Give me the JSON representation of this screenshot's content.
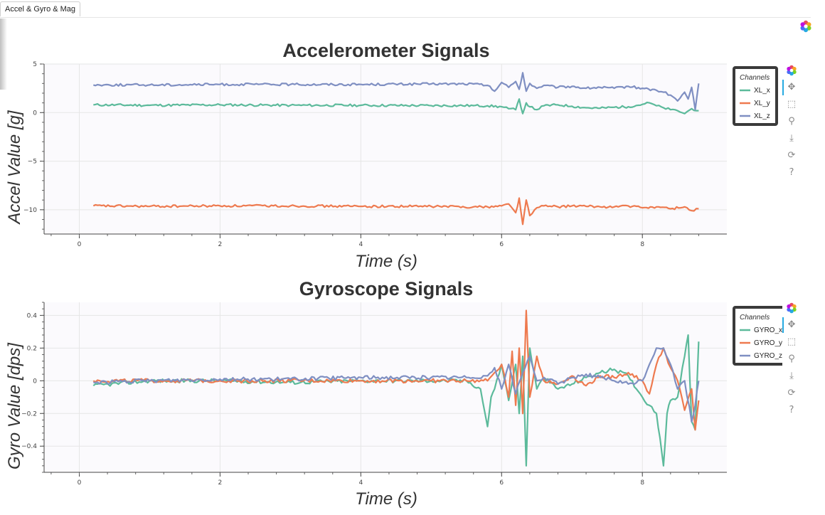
{
  "tab": {
    "label": "Accel & Gyro & Mag"
  },
  "colors": {
    "x": "#5cba9b",
    "y": "#ee7a4f",
    "z": "#7f8fc2",
    "grid": "#e6e6e6",
    "bg": "#fbfafd"
  },
  "toolbar_icons": [
    "bokeh-logo-icon",
    "pan-icon",
    "box-zoom-icon",
    "wheel-zoom-icon",
    "save-icon",
    "reset-icon",
    "help-icon"
  ],
  "chart_data": [
    {
      "type": "line",
      "title": "Accelerometer Signals",
      "xlabel": "Time (s)",
      "ylabel": "Accel Value [g]",
      "xlim": [
        -0.5,
        9.2
      ],
      "ylim": [
        -12.5,
        5
      ],
      "xticks": [
        0,
        2,
        4,
        6,
        8
      ],
      "xtick_labels": [
        "0",
        "2",
        "4",
        "6",
        "8"
      ],
      "yticks": [
        5,
        0,
        -5,
        -10
      ],
      "ytick_labels": [
        "5",
        "0",
        "−5",
        "−10"
      ],
      "grid": true,
      "legend": {
        "title": "Channels",
        "position": "right-outside-top"
      },
      "series": [
        {
          "name": "XL_x",
          "color_key": "x",
          "points": [
            [
              0.2,
              0.8
            ],
            [
              1,
              0.75
            ],
            [
              2,
              0.8
            ],
            [
              3,
              0.75
            ],
            [
              4,
              0.75
            ],
            [
              5,
              0.72
            ],
            [
              5.6,
              0.72
            ],
            [
              5.8,
              0.7
            ],
            [
              6.0,
              0.6
            ],
            [
              6.1,
              0.4
            ],
            [
              6.2,
              0.3
            ],
            [
              6.25,
              1.4
            ],
            [
              6.3,
              -0.1
            ],
            [
              6.35,
              1.0
            ],
            [
              6.4,
              0.6
            ],
            [
              6.5,
              0.3
            ],
            [
              6.6,
              0.7
            ],
            [
              6.8,
              0.8
            ],
            [
              7.0,
              0.65
            ],
            [
              7.2,
              0.5
            ],
            [
              7.4,
              0.45
            ],
            [
              7.6,
              0.55
            ],
            [
              7.8,
              0.6
            ],
            [
              8.0,
              0.85
            ],
            [
              8.1,
              1.0
            ],
            [
              8.2,
              0.7
            ],
            [
              8.3,
              0.5
            ],
            [
              8.4,
              0.3
            ],
            [
              8.5,
              0.2
            ],
            [
              8.6,
              -0.1
            ],
            [
              8.7,
              0.4
            ],
            [
              8.8,
              0.2
            ]
          ]
        },
        {
          "name": "XL_y",
          "color_key": "y",
          "points": [
            [
              0.2,
              -9.6
            ],
            [
              1,
              -9.65
            ],
            [
              2,
              -9.6
            ],
            [
              3,
              -9.6
            ],
            [
              4,
              -9.65
            ],
            [
              5,
              -9.65
            ],
            [
              5.6,
              -9.7
            ],
            [
              5.8,
              -9.7
            ],
            [
              6.0,
              -9.6
            ],
            [
              6.1,
              -9.4
            ],
            [
              6.2,
              -10.3
            ],
            [
              6.25,
              -8.8
            ],
            [
              6.3,
              -11.5
            ],
            [
              6.35,
              -9.0
            ],
            [
              6.4,
              -10.6
            ],
            [
              6.5,
              -9.8
            ],
            [
              6.6,
              -9.6
            ],
            [
              6.8,
              -9.7
            ],
            [
              7.0,
              -9.6
            ],
            [
              7.2,
              -9.65
            ],
            [
              7.4,
              -9.7
            ],
            [
              7.6,
              -9.7
            ],
            [
              7.8,
              -9.6
            ],
            [
              8.0,
              -9.8
            ],
            [
              8.2,
              -9.7
            ],
            [
              8.4,
              -9.9
            ],
            [
              8.6,
              -9.7
            ],
            [
              8.7,
              -10.1
            ],
            [
              8.8,
              -9.9
            ]
          ]
        },
        {
          "name": "XL_z",
          "color_key": "z",
          "points": [
            [
              0.2,
              2.85
            ],
            [
              1,
              2.85
            ],
            [
              2,
              2.9
            ],
            [
              3,
              2.9
            ],
            [
              4,
              2.9
            ],
            [
              5,
              2.95
            ],
            [
              5.6,
              2.95
            ],
            [
              5.8,
              2.8
            ],
            [
              5.9,
              2.2
            ],
            [
              6.0,
              3.1
            ],
            [
              6.1,
              2.6
            ],
            [
              6.2,
              3.2
            ],
            [
              6.25,
              2.4
            ],
            [
              6.3,
              4.1
            ],
            [
              6.35,
              2.2
            ],
            [
              6.4,
              3.0
            ],
            [
              6.5,
              2.5
            ],
            [
              6.6,
              2.8
            ],
            [
              6.8,
              2.6
            ],
            [
              7.0,
              2.7
            ],
            [
              7.2,
              2.5
            ],
            [
              7.4,
              2.6
            ],
            [
              7.6,
              2.5
            ],
            [
              7.8,
              2.7
            ],
            [
              8.0,
              2.5
            ],
            [
              8.2,
              2.3
            ],
            [
              8.3,
              2.1
            ],
            [
              8.4,
              1.8
            ],
            [
              8.5,
              1.2
            ],
            [
              8.6,
              2.1
            ],
            [
              8.65,
              1.4
            ],
            [
              8.7,
              2.6
            ],
            [
              8.75,
              0.3
            ],
            [
              8.8,
              3.0
            ]
          ]
        }
      ]
    },
    {
      "type": "line",
      "title": "Gyroscope Signals",
      "xlabel": "Time (s)",
      "ylabel": "Gyro Value [dps]",
      "xlim": [
        -0.5,
        9.2
      ],
      "ylim": [
        -0.56,
        0.48
      ],
      "xticks": [
        0,
        2,
        4,
        6,
        8
      ],
      "xtick_labels": [
        "0",
        "2",
        "4",
        "6",
        "8"
      ],
      "yticks": [
        0.4,
        0.2,
        0,
        -0.2,
        -0.4
      ],
      "ytick_labels": [
        "0.4",
        "0.2",
        "0",
        "−0.2",
        "−0.4"
      ],
      "grid": true,
      "legend": {
        "title": "Channels",
        "position": "right-outside-top"
      },
      "series": [
        {
          "name": "GYRO_x",
          "color_key": "x",
          "points": [
            [
              0.2,
              -0.03
            ],
            [
              1,
              0.0
            ],
            [
              2,
              0.0
            ],
            [
              3,
              -0.01
            ],
            [
              4,
              0.0
            ],
            [
              5,
              0.0
            ],
            [
              5.5,
              0.0
            ],
            [
              5.7,
              -0.05
            ],
            [
              5.8,
              -0.28
            ],
            [
              5.85,
              -0.1
            ],
            [
              5.9,
              -0.05
            ],
            [
              6.0,
              0.1
            ],
            [
              6.1,
              -0.12
            ],
            [
              6.2,
              0.1
            ],
            [
              6.25,
              -0.2
            ],
            [
              6.3,
              0.15
            ],
            [
              6.35,
              -0.52
            ],
            [
              6.4,
              0.2
            ],
            [
              6.5,
              -0.05
            ],
            [
              6.6,
              0.02
            ],
            [
              6.8,
              -0.05
            ],
            [
              7.0,
              -0.02
            ],
            [
              7.2,
              0.02
            ],
            [
              7.4,
              0.05
            ],
            [
              7.6,
              0.07
            ],
            [
              7.8,
              0.03
            ],
            [
              8.0,
              -0.1
            ],
            [
              8.1,
              -0.15
            ],
            [
              8.2,
              -0.2
            ],
            [
              8.25,
              -0.35
            ],
            [
              8.3,
              -0.52
            ],
            [
              8.35,
              -0.2
            ],
            [
              8.4,
              -0.12
            ],
            [
              8.5,
              -0.1
            ],
            [
              8.6,
              0.15
            ],
            [
              8.65,
              0.28
            ],
            [
              8.7,
              -0.25
            ],
            [
              8.75,
              -0.3
            ],
            [
              8.8,
              0.24
            ]
          ]
        },
        {
          "name": "GYRO_y",
          "color_key": "y",
          "points": [
            [
              0.2,
              0.0
            ],
            [
              1,
              0.0
            ],
            [
              2,
              0.0
            ],
            [
              3,
              0.0
            ],
            [
              4,
              0.0
            ],
            [
              5,
              0.0
            ],
            [
              5.5,
              0.0
            ],
            [
              5.8,
              0.0
            ],
            [
              5.9,
              0.05
            ],
            [
              6.0,
              0.1
            ],
            [
              6.1,
              -0.1
            ],
            [
              6.15,
              0.18
            ],
            [
              6.2,
              -0.15
            ],
            [
              6.25,
              0.2
            ],
            [
              6.3,
              -0.2
            ],
            [
              6.35,
              0.43
            ],
            [
              6.4,
              -0.1
            ],
            [
              6.5,
              0.15
            ],
            [
              6.6,
              0.0
            ],
            [
              6.8,
              -0.02
            ],
            [
              7.0,
              0.03
            ],
            [
              7.2,
              -0.03
            ],
            [
              7.4,
              0.03
            ],
            [
              7.6,
              0.02
            ],
            [
              7.8,
              0.05
            ],
            [
              8.0,
              0.0
            ],
            [
              8.1,
              -0.08
            ],
            [
              8.2,
              0.1
            ],
            [
              8.3,
              0.2
            ],
            [
              8.4,
              0.08
            ],
            [
              8.5,
              0.0
            ],
            [
              8.6,
              -0.18
            ],
            [
              8.7,
              -0.05
            ],
            [
              8.75,
              -0.3
            ],
            [
              8.8,
              -0.12
            ]
          ]
        },
        {
          "name": "GYRO_z",
          "color_key": "z",
          "points": [
            [
              0.2,
              -0.01
            ],
            [
              1,
              0.0
            ],
            [
              2,
              0.01
            ],
            [
              3,
              0.01
            ],
            [
              4,
              0.02
            ],
            [
              5,
              0.02
            ],
            [
              5.5,
              0.02
            ],
            [
              5.8,
              0.03
            ],
            [
              5.9,
              0.08
            ],
            [
              6.0,
              -0.05
            ],
            [
              6.1,
              0.1
            ],
            [
              6.2,
              -0.08
            ],
            [
              6.3,
              0.05
            ],
            [
              6.4,
              0.15
            ],
            [
              6.5,
              0.0
            ],
            [
              6.6,
              0.02
            ],
            [
              6.8,
              -0.02
            ],
            [
              7.0,
              0.02
            ],
            [
              7.2,
              0.04
            ],
            [
              7.4,
              0.02
            ],
            [
              7.6,
              0.0
            ],
            [
              7.8,
              -0.02
            ],
            [
              8.0,
              0.0
            ],
            [
              8.1,
              0.1
            ],
            [
              8.2,
              0.2
            ],
            [
              8.3,
              0.2
            ],
            [
              8.4,
              0.1
            ],
            [
              8.5,
              -0.05
            ],
            [
              8.6,
              0.0
            ],
            [
              8.7,
              -0.25
            ],
            [
              8.75,
              -0.15
            ],
            [
              8.8,
              0.0
            ]
          ]
        }
      ]
    }
  ]
}
